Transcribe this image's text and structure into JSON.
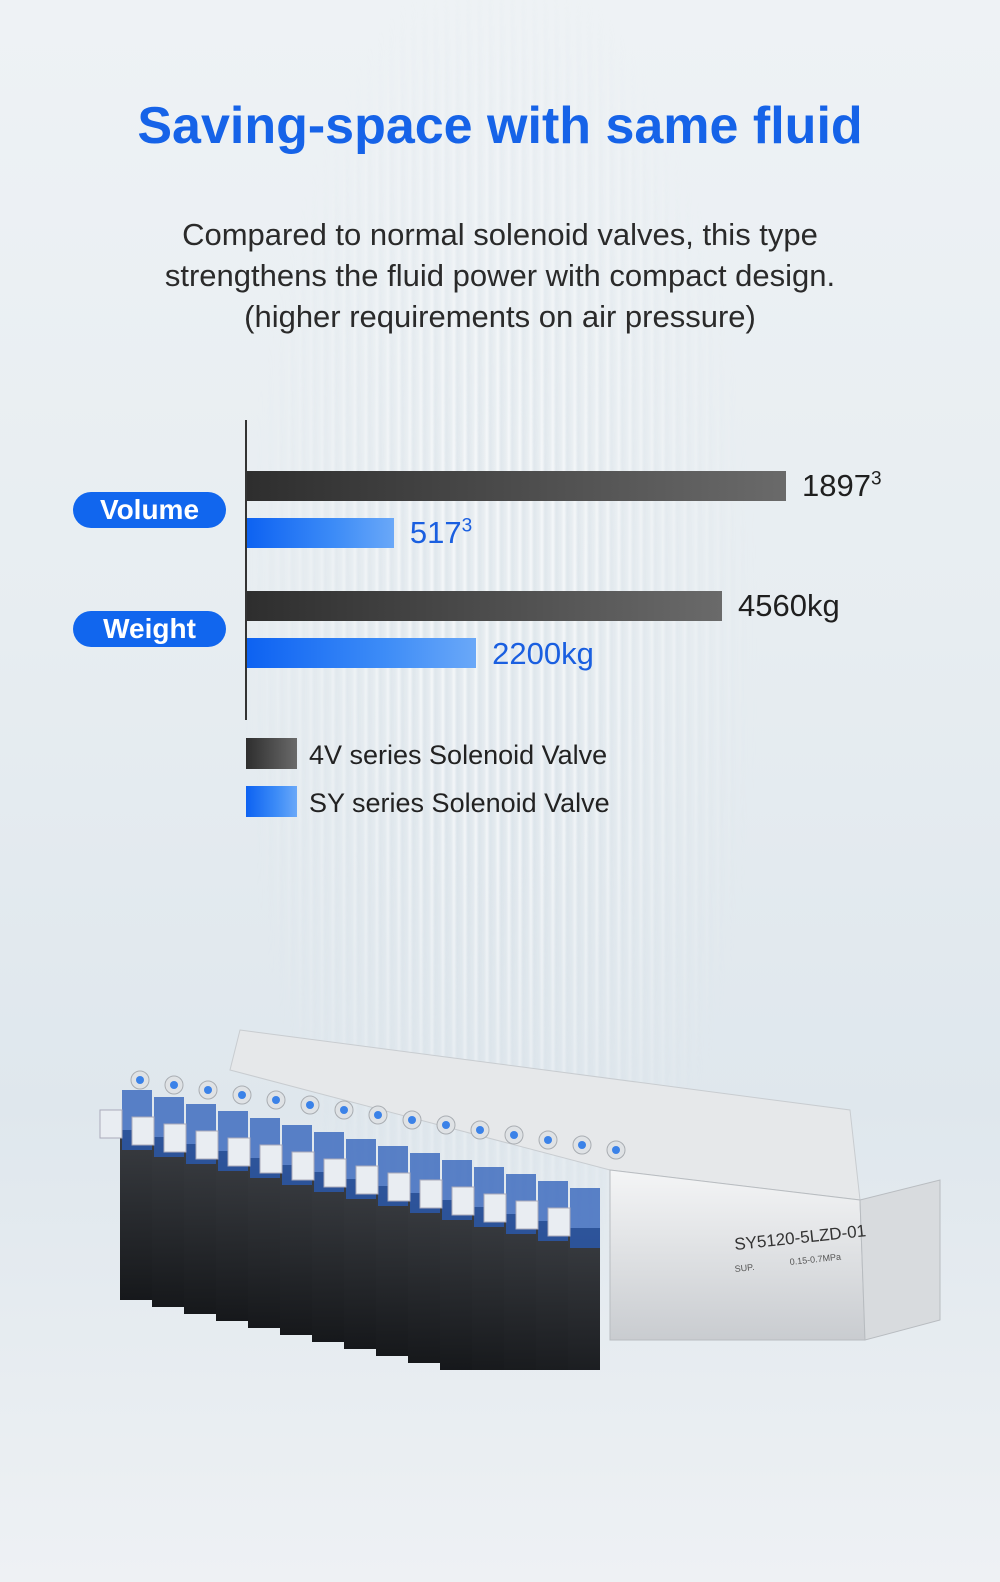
{
  "header": {
    "title": "Saving-space with same fluid",
    "subtitle_lines": [
      "Compared to normal solenoid valves, this type",
      "strengthens the fluid power with compact design.",
      "(higher requirements on air pressure)"
    ]
  },
  "chart_data": {
    "type": "bar",
    "orientation": "horizontal",
    "categories": [
      "Volume",
      "Weight"
    ],
    "series": [
      {
        "name": "4V series Solenoid Valve",
        "values": [
          1897,
          4560
        ],
        "labels": [
          "1897",
          "4560kg"
        ],
        "label_sup": [
          "3",
          ""
        ],
        "color": "#3a3a3a"
      },
      {
        "name": "SY series Solenoid Valve",
        "values": [
          517,
          2200
        ],
        "labels": [
          "517",
          "2200kg"
        ],
        "label_sup": [
          "3",
          ""
        ],
        "color": "#1166ee"
      }
    ],
    "grid": false,
    "legend": "bottom-left",
    "scale": "per-category"
  },
  "product": {
    "model_label": "SY5120-5LZD-01",
    "pressure_label": "0.15-0.7MPa",
    "port_label": "SUP."
  },
  "colors": {
    "accent": "#1663e8",
    "dark_bar": "#3a3a3a",
    "blue_bar": "#1166ee"
  }
}
